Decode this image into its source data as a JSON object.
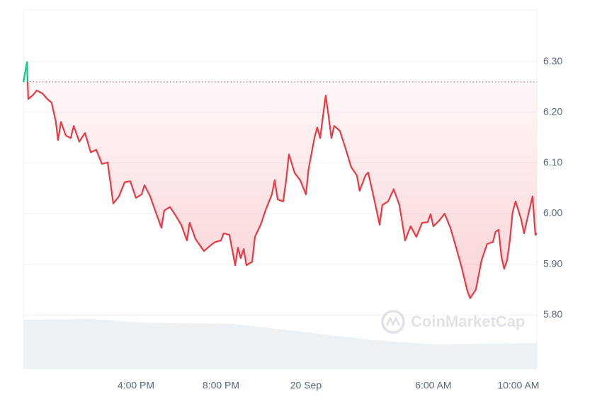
{
  "chart_data": {
    "type": "line",
    "watermark": "CoinMarketCap",
    "x": [
      10.7,
      10.87,
      10.93,
      11.13,
      11.33,
      11.6,
      11.83,
      12.03,
      12.23,
      12.33,
      12.47,
      12.7,
      12.93,
      13.07,
      13.33,
      13.6,
      13.87,
      14.13,
      14.4,
      14.67,
      14.93,
      15.2,
      15.47,
      15.73,
      16.0,
      16.27,
      16.4,
      16.67,
      16.93,
      17.2,
      17.33,
      17.6,
      17.87,
      18.13,
      18.4,
      18.53,
      18.8,
      19.2,
      19.47,
      19.73,
      20.0,
      20.13,
      20.4,
      20.67,
      20.8,
      20.93,
      21.07,
      21.2,
      21.47,
      21.6,
      21.87,
      22.13,
      22.4,
      22.53,
      22.67,
      22.93,
      23.07,
      23.2,
      23.47,
      23.73,
      24.0,
      24.13,
      24.4,
      24.53,
      24.67,
      24.93,
      25.07,
      25.2,
      25.33,
      25.6,
      25.87,
      26.13,
      26.4,
      26.53,
      26.8,
      26.93,
      27.2,
      27.47,
      27.6,
      27.87,
      28.13,
      28.4,
      28.67,
      28.93,
      29.2,
      29.47,
      29.73,
      29.87,
      30.0,
      30.27,
      30.53,
      30.8,
      31.07,
      31.33,
      31.6,
      31.73,
      32.0,
      32.27,
      32.53,
      32.8,
      32.93,
      33.07,
      33.2,
      33.33,
      33.47,
      33.6,
      33.73,
      33.87,
      34.13,
      34.27,
      34.4,
      34.67,
      34.8,
      34.87
    ],
    "series": [
      {
        "color": "#ea3943",
        "color_up": "#16c784",
        "values": [
          6.26,
          6.299,
          6.226,
          6.233,
          6.243,
          6.237,
          6.226,
          6.219,
          6.181,
          6.145,
          6.181,
          6.154,
          6.149,
          6.173,
          6.142,
          6.159,
          6.121,
          6.126,
          6.098,
          6.101,
          6.02,
          6.034,
          6.062,
          6.064,
          6.031,
          6.038,
          6.056,
          6.034,
          6.003,
          5.972,
          6.006,
          6.013,
          5.996,
          5.978,
          5.947,
          5.982,
          5.95,
          5.926,
          5.936,
          5.944,
          5.947,
          5.961,
          5.958,
          5.898,
          5.933,
          5.912,
          5.93,
          5.898,
          5.905,
          5.954,
          5.978,
          6.01,
          6.038,
          6.066,
          6.028,
          6.024,
          6.066,
          6.117,
          6.08,
          6.066,
          6.038,
          6.089,
          6.149,
          6.17,
          6.149,
          6.233,
          6.191,
          6.149,
          6.173,
          6.163,
          6.128,
          6.092,
          6.075,
          6.045,
          6.075,
          6.081,
          6.031,
          5.978,
          6.017,
          6.024,
          6.048,
          6.017,
          5.947,
          5.975,
          5.954,
          5.982,
          5.983,
          5.999,
          5.975,
          5.986,
          6.0,
          5.972,
          5.933,
          5.894,
          5.847,
          5.833,
          5.85,
          5.908,
          5.94,
          5.944,
          5.964,
          5.968,
          5.916,
          5.891,
          5.908,
          5.947,
          6.003,
          6.024,
          5.989,
          5.961,
          5.986,
          6.034,
          5.958,
          5.961
        ]
      }
    ],
    "baseline": 6.26,
    "xlim": [
      10.7,
      34.87
    ],
    "ylim": [
      5.693,
      6.402
    ],
    "xticks": [
      {
        "value": 16,
        "label": "4:00 PM"
      },
      {
        "value": 20,
        "label": "8:00 PM"
      },
      {
        "value": 24,
        "label": "20 Sep"
      },
      {
        "value": 30,
        "label": "6:00 AM"
      },
      {
        "value": 34,
        "label": "10:00 AM"
      }
    ],
    "yticks": [
      {
        "value": 5.8,
        "label": "5.80"
      },
      {
        "value": 5.9,
        "label": "5.90"
      },
      {
        "value": 6.0,
        "label": "6.00"
      },
      {
        "value": 6.1,
        "label": "6.10"
      },
      {
        "value": 6.2,
        "label": "6.20"
      },
      {
        "value": 6.3,
        "label": "6.30"
      }
    ],
    "grid": true
  }
}
